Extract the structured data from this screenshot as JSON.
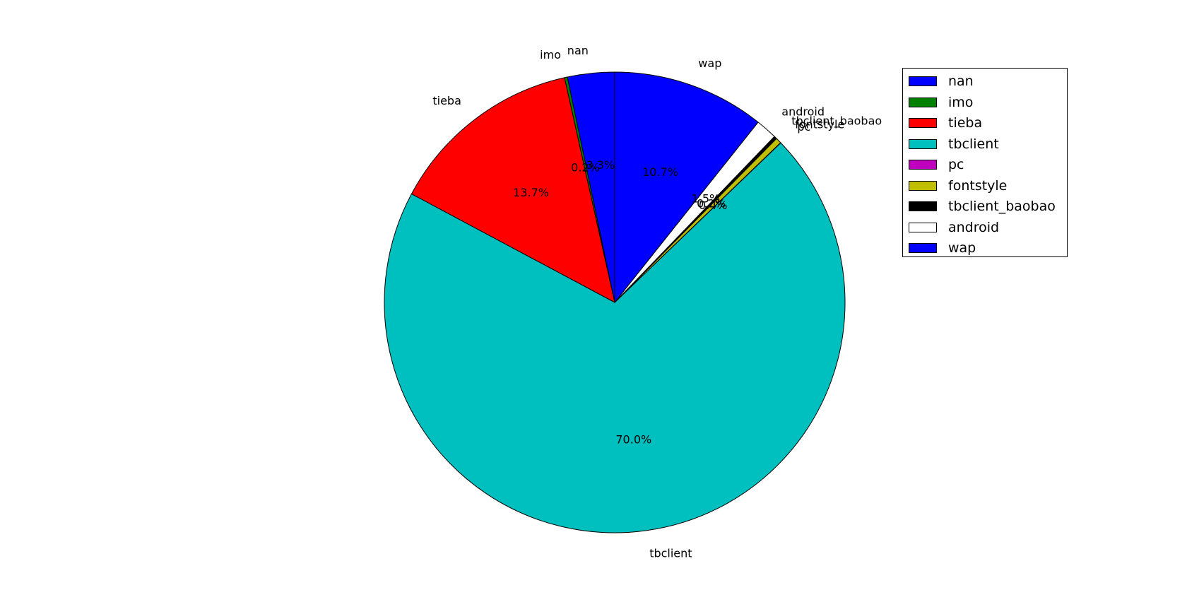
{
  "chart_data": {
    "type": "pie",
    "title": "",
    "slices": [
      {
        "label": "nan",
        "value": 3.3,
        "pct_label": "3.3%",
        "color": "#0000ff"
      },
      {
        "label": "imo",
        "value": 0.2,
        "pct_label": "0.2%",
        "color": "#008000"
      },
      {
        "label": "tieba",
        "value": 13.7,
        "pct_label": "13.7%",
        "color": "#ff0000"
      },
      {
        "label": "tbclient",
        "value": 70.0,
        "pct_label": "70.0%",
        "color": "#00bfbf"
      },
      {
        "label": "pc",
        "value": 0.02,
        "pct_label": "",
        "color": "#bf00bf"
      },
      {
        "label": "fontstyle",
        "value": 0.4,
        "pct_label": "0.4%",
        "color": "#bfbf00"
      },
      {
        "label": "tbclient_baobao",
        "value": 0.2,
        "pct_label": "0.2%",
        "color": "#000000"
      },
      {
        "label": "android",
        "value": 1.5,
        "pct_label": "1.5%",
        "color": "#ffffff"
      },
      {
        "label": "wap",
        "value": 10.7,
        "pct_label": "10.7%",
        "color": "#0000ff"
      }
    ],
    "start_angle_deg": 90,
    "direction": "counterclockwise",
    "legend_placement": "top-right"
  },
  "legend": {
    "items": [
      {
        "label": "nan",
        "color": "#0000ff"
      },
      {
        "label": "imo",
        "color": "#008000"
      },
      {
        "label": "tieba",
        "color": "#ff0000"
      },
      {
        "label": "tbclient",
        "color": "#00bfbf"
      },
      {
        "label": "pc",
        "color": "#bf00bf"
      },
      {
        "label": "fontstyle",
        "color": "#bfbf00"
      },
      {
        "label": "tbclient_baobao",
        "color": "#000000"
      },
      {
        "label": "android",
        "color": "#ffffff"
      },
      {
        "label": "wap",
        "color": "#0000ff"
      }
    ]
  }
}
